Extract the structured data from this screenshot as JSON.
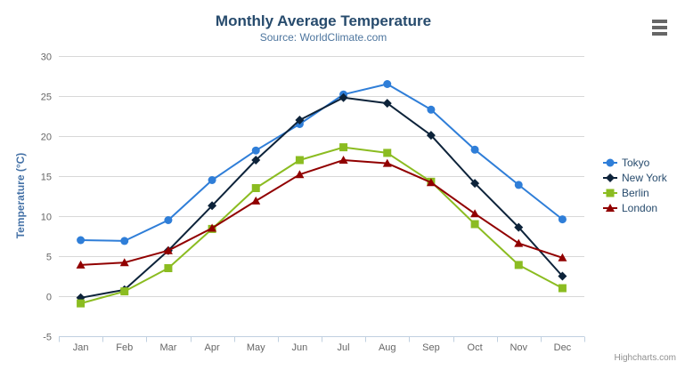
{
  "chart_data": {
    "type": "line",
    "title": "Monthly Average Temperature",
    "subtitle": "Source: WorldClimate.com",
    "ylabel": "Temperature (°C)",
    "xlabel": "",
    "ylim": [
      -5,
      30
    ],
    "ytick_step": 5,
    "grid": true,
    "legend_position": "right",
    "categories": [
      "Jan",
      "Feb",
      "Mar",
      "Apr",
      "May",
      "Jun",
      "Jul",
      "Aug",
      "Sep",
      "Oct",
      "Nov",
      "Dec"
    ],
    "series": [
      {
        "name": "Tokyo",
        "color": "#2f7ed8",
        "marker": "circle",
        "values": [
          7.0,
          6.9,
          9.5,
          14.5,
          18.2,
          21.5,
          25.2,
          26.5,
          23.3,
          18.3,
          13.9,
          9.6
        ]
      },
      {
        "name": "New York",
        "color": "#0d233a",
        "marker": "diamond",
        "values": [
          -0.2,
          0.8,
          5.7,
          11.3,
          17.0,
          22.0,
          24.8,
          24.1,
          20.1,
          14.1,
          8.6,
          2.5
        ]
      },
      {
        "name": "Berlin",
        "color": "#8bbc21",
        "marker": "square",
        "values": [
          -0.9,
          0.6,
          3.5,
          8.4,
          13.5,
          17.0,
          18.6,
          17.9,
          14.3,
          9.0,
          3.9,
          1.0
        ]
      },
      {
        "name": "London",
        "color": "#910000",
        "marker": "triangle",
        "values": [
          3.9,
          4.2,
          5.7,
          8.5,
          11.9,
          15.2,
          17.0,
          16.6,
          14.2,
          10.3,
          6.6,
          4.8
        ]
      }
    ]
  },
  "credits": {
    "label": "Highcharts.com"
  },
  "export_button": {
    "icon": "hamburger-icon"
  },
  "theme": {
    "title_color": "#274b6d",
    "subtitle_color": "#4d759e",
    "axis_label_color": "#666666",
    "y_axis_title_color": "#4572a7",
    "grid_color": "#d8d8d8",
    "axis_line_color": "#c0d0e0",
    "legend_text_color": "#274b6d",
    "credit_color": "#909090",
    "export_icon_color": "#666666",
    "background": "#ffffff"
  }
}
